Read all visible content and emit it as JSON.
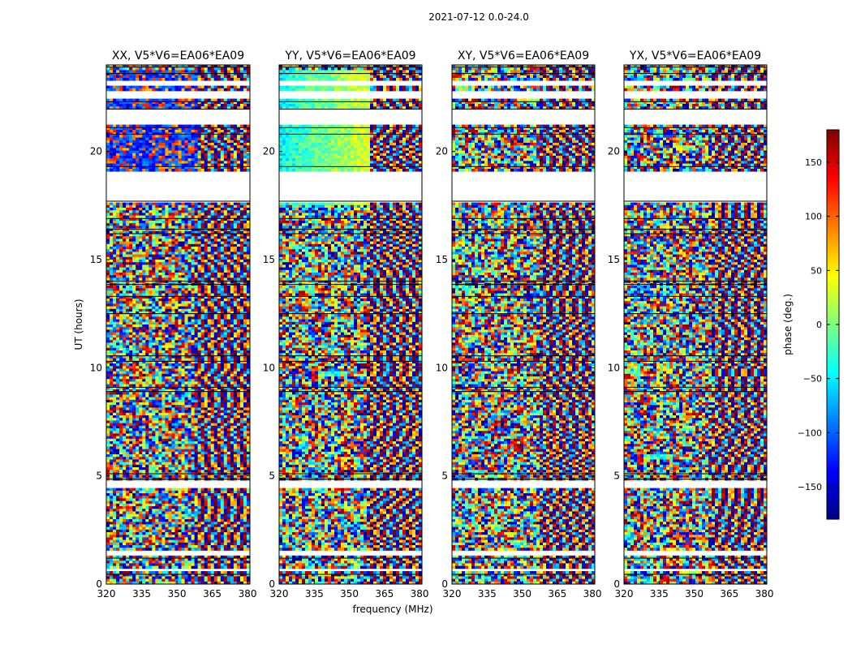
{
  "figure": {
    "suptitle": "2021-07-12 0.0-24.0"
  },
  "colorbar": {
    "label": "phase (deg.)",
    "range": [
      -180,
      180
    ],
    "ticks": [
      150,
      100,
      50,
      0,
      -50,
      -100,
      -150
    ],
    "tick_labels": [
      "150",
      "100",
      "50",
      "0",
      "−50",
      "−100",
      "−150"
    ],
    "colormap": "jet",
    "colors": [
      "#00007f",
      "#0000ff",
      "#007fff",
      "#00ffff",
      "#7fff7f",
      "#ffff00",
      "#ff7f00",
      "#ff0000",
      "#7f0000"
    ]
  },
  "chart_data": [
    {
      "type": "heatmap",
      "title": "XX, V5*V6=EA06*EA09",
      "xlabel": "",
      "ylabel": "UT (hours)",
      "xlim": [
        320,
        381
      ],
      "ylim": [
        0,
        24
      ],
      "xticks": [
        320,
        335,
        350,
        365,
        380
      ],
      "yticks": [
        0,
        5,
        10,
        15,
        20
      ],
      "value": "phase (deg.)"
    },
    {
      "type": "heatmap",
      "title": "YY, V5*V6=EA06*EA09",
      "xlabel": "frequency (MHz)",
      "ylabel": "",
      "xlim": [
        320,
        381
      ],
      "ylim": [
        0,
        24
      ],
      "xticks": [
        320,
        335,
        350,
        365,
        380
      ],
      "yticks": [
        0,
        5,
        10,
        15,
        20
      ],
      "value": "phase (deg.)"
    },
    {
      "type": "heatmap",
      "title": "XY, V5*V6=EA06*EA09",
      "xlabel": "",
      "ylabel": "",
      "xlim": [
        320,
        381
      ],
      "ylim": [
        0,
        24
      ],
      "xticks": [
        320,
        335,
        350,
        365,
        380
      ],
      "yticks": [
        0,
        5,
        10,
        15,
        20
      ],
      "value": "phase (deg.)"
    },
    {
      "type": "heatmap",
      "title": "YX, V5*V6=EA06*EA09",
      "xlabel": "",
      "ylabel": "",
      "xlim": [
        320,
        381
      ],
      "ylim": [
        0,
        24
      ],
      "xticks": [
        320,
        335,
        350,
        365,
        380
      ],
      "yticks": [
        0,
        5,
        10,
        15,
        20
      ],
      "value": "phase (deg.)"
    }
  ]
}
